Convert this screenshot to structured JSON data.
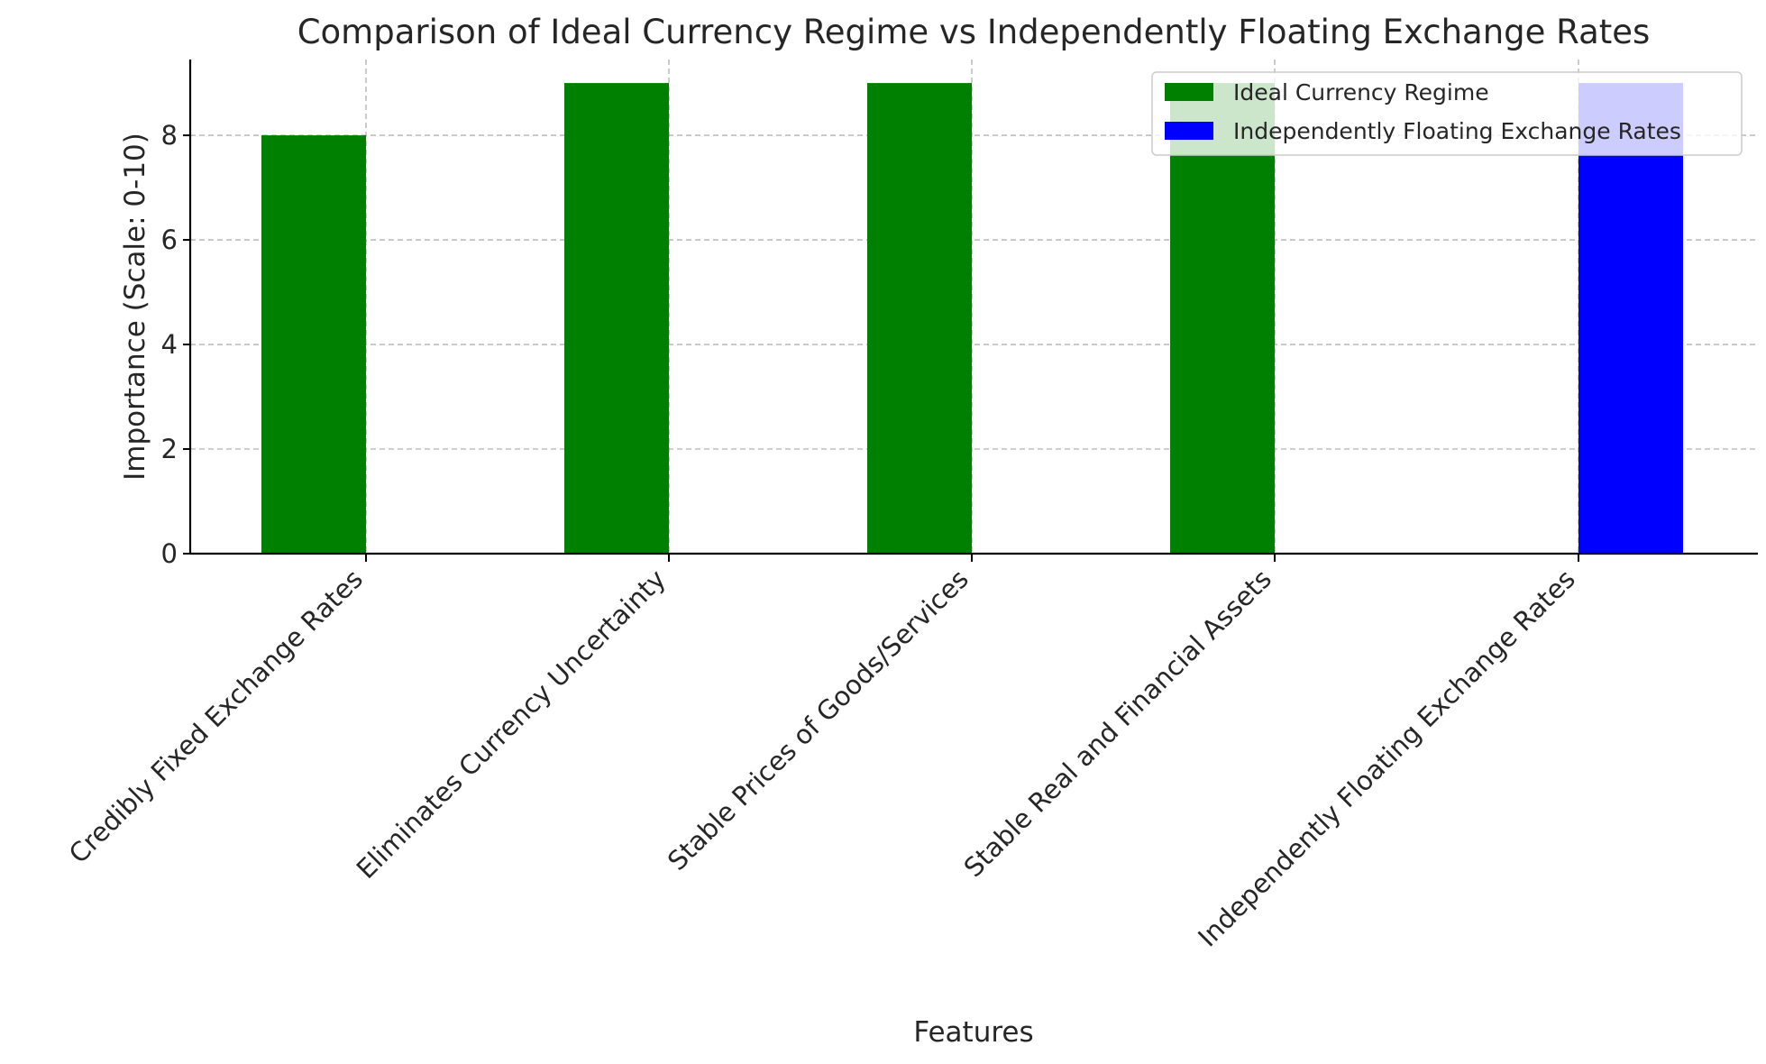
{
  "chart_data": {
    "type": "bar",
    "title": "Comparison of Ideal Currency Regime vs Independently Floating Exchange Rates",
    "xlabel": "Features",
    "ylabel": "Importance (Scale: 0-10)",
    "categories": [
      "Credibly Fixed Exchange Rates",
      "Eliminates Currency Uncertainty",
      "Stable Prices of Goods/Services",
      "Stable Real and Financial Assets",
      "Independently Floating Exchange Rates"
    ],
    "series": [
      {
        "name": "Ideal Currency Regime",
        "color": "#008000",
        "values": [
          8,
          9,
          9,
          9,
          null
        ]
      },
      {
        "name": "Independently Floating Exchange Rates",
        "color": "#0000ff",
        "values": [
          null,
          null,
          null,
          null,
          9
        ]
      }
    ],
    "ylim": [
      0,
      9.45
    ],
    "yticks": [
      0,
      2,
      4,
      6,
      8
    ],
    "grid": true,
    "legend": "top-right"
  }
}
